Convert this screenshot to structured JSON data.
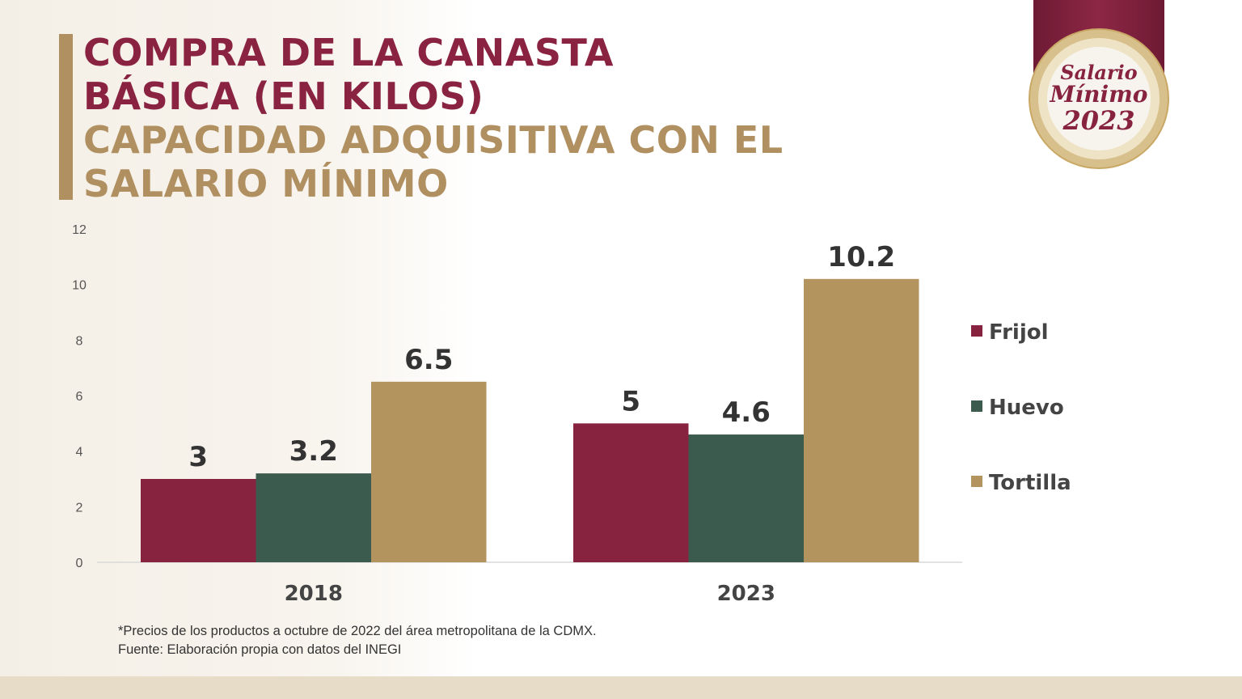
{
  "header": {
    "title_line1": "COMPRA DE LA CANASTA",
    "title_line2": "BÁSICA (EN KILOS)",
    "subtitle_line1": "CAPACIDAD ADQUISITIVA CON EL",
    "subtitle_line2": "SALARIO MÍNIMO"
  },
  "badge": {
    "line1": "Salario",
    "line2": "Mínimo",
    "line3": "2023"
  },
  "footnote": {
    "line1": "*Precios de los productos a octubre de 2022 del área metropolitana de la CDMX.",
    "line2": "Fuente: Elaboración propia con datos del INEGI"
  },
  "chart_data": {
    "type": "bar",
    "title": "COMPRA DE LA CANASTA BÁSICA (EN KILOS)",
    "categories": [
      "2018",
      "2023"
    ],
    "series": [
      {
        "name": "Frijol",
        "values": [
          3,
          5
        ],
        "labels": [
          "3",
          "5"
        ],
        "color": "#87233f"
      },
      {
        "name": "Huevo",
        "values": [
          3.2,
          4.6
        ],
        "labels": [
          "3.2",
          "4.6"
        ],
        "color": "#3b5b4f"
      },
      {
        "name": "Tortilla",
        "values": [
          6.5,
          10.2
        ],
        "labels": [
          "6.5",
          "10.2"
        ],
        "color": "#b3945f"
      }
    ],
    "yticks": [
      "0",
      "2",
      "4",
      "6",
      "8",
      "10",
      "12"
    ],
    "ylim": [
      0,
      12
    ],
    "xlabel": "",
    "ylabel": "",
    "grid": false,
    "legend": "right"
  }
}
